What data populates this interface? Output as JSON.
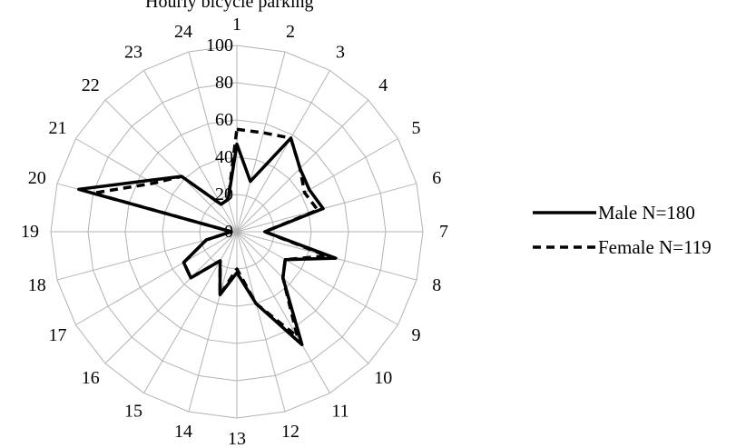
{
  "chart_data": {
    "type": "radar",
    "title": "Hourly bicycle parking",
    "categories": [
      "1",
      "2",
      "3",
      "4",
      "5",
      "6",
      "7",
      "8",
      "9",
      "10",
      "11",
      "12",
      "13",
      "14",
      "15",
      "16",
      "17",
      "18",
      "19",
      "20",
      "21",
      "22",
      "23",
      "24"
    ],
    "rlim": [
      0,
      100
    ],
    "ticks": [
      "0",
      "20",
      "40",
      "60",
      "80",
      "100"
    ],
    "grid": true,
    "legend_position": "right",
    "series": [
      {
        "name": "Male N=180",
        "style": "solid",
        "color": "#000000",
        "values": [
          47,
          28,
          58,
          48,
          45,
          48,
          15,
          55,
          30,
          35,
          70,
          40,
          22,
          35,
          18,
          35,
          33,
          17,
          3,
          88,
          55,
          42,
          17,
          18
        ]
      },
      {
        "name": "Female N=119",
        "style": "dashed",
        "color": "#000000",
        "values": [
          55,
          55,
          58,
          48,
          42,
          45,
          15,
          50,
          30,
          35,
          65,
          40,
          20,
          35,
          18,
          35,
          33,
          17,
          3,
          80,
          52,
          42,
          17,
          18
        ]
      }
    ]
  }
}
